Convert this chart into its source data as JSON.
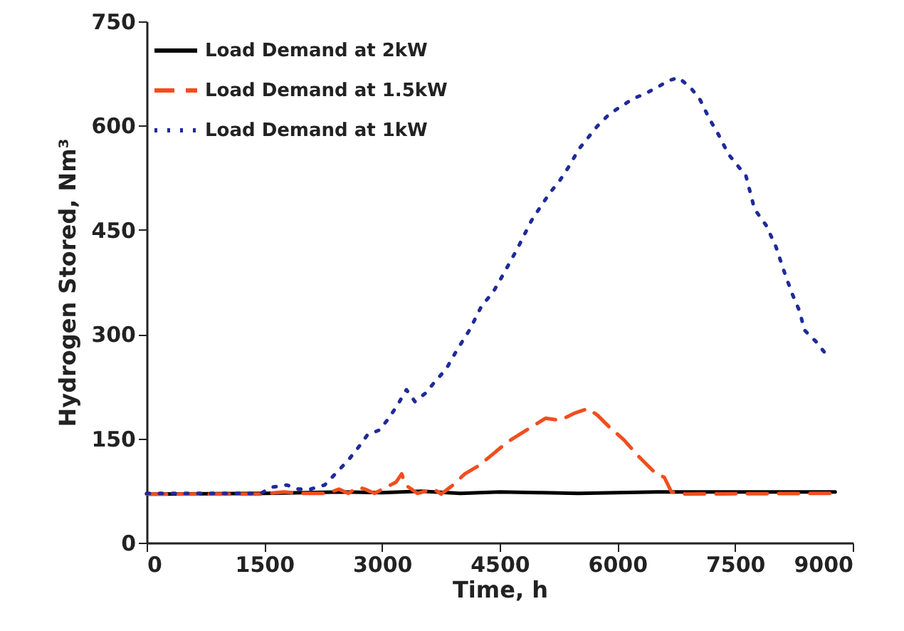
{
  "chart_data": {
    "type": "line",
    "xlabel": "Time, h",
    "ylabel": "Hydrogen Stored, Nm³",
    "xlim": [
      0,
      9000
    ],
    "xticks": [
      0,
      1500,
      3000,
      4500,
      6000,
      7500,
      9000
    ],
    "ylim": [
      0,
      750
    ],
    "yticks": [
      0,
      150,
      300,
      450,
      600,
      750
    ],
    "grid": false,
    "legend": "top left",
    "series": [
      {
        "name": "Load Demand at 2kW",
        "color": "#000000",
        "line_style": "solid",
        "x": [
          0,
          1500,
          2500,
          3000,
          3500,
          4000,
          4500,
          5000,
          5500,
          6000,
          6500,
          7000,
          7500,
          8776
        ],
        "values": [
          70,
          71,
          73,
          72,
          74,
          71,
          73,
          72,
          71,
          72,
          73,
          73,
          73,
          73
        ]
      },
      {
        "name": "Load Demand at 1.5kW",
        "color": "#f04e1e",
        "line_style": "dashed",
        "x": [
          0,
          1453,
          1755,
          1967,
          2300,
          2451,
          2572,
          2693,
          2784,
          2905,
          3057,
          3178,
          3251,
          3299,
          3451,
          3663,
          3753,
          3905,
          4056,
          4237,
          4419,
          4600,
          4842,
          5084,
          5266,
          5447,
          5629,
          5750,
          5901,
          6083,
          6264,
          6476,
          6598,
          6689,
          6870,
          8776
        ],
        "values": [
          70,
          70,
          73,
          71,
          71,
          77,
          71,
          80,
          77,
          71,
          80,
          87,
          99,
          83,
          71,
          77,
          70,
          83,
          99,
          111,
          128,
          145,
          162,
          179,
          176,
          186,
          193,
          183,
          166,
          148,
          125,
          101,
          94,
          73,
          70,
          71
        ]
      },
      {
        "name": "Load Demand at 1kW",
        "color": "#1f2a9a",
        "line_style": "dotted",
        "x": [
          0,
          1453,
          1604,
          1785,
          1937,
          2088,
          2270,
          2421,
          2572,
          2705,
          2814,
          2966,
          3087,
          3208,
          3311,
          3420,
          3553,
          3692,
          3813,
          3965,
          4116,
          4267,
          4419,
          4540,
          4721,
          4903,
          5024,
          5145,
          5266,
          5387,
          5508,
          5629,
          5750,
          5901,
          6053,
          6204,
          6355,
          6506,
          6658,
          6779,
          6930,
          7051,
          7172,
          7294,
          7415,
          7536,
          7638,
          7748,
          7899,
          8020,
          8141,
          8232,
          8323,
          8383,
          8534,
          8667
        ],
        "values": [
          71,
          71,
          80,
          83,
          77,
          77,
          83,
          101,
          119,
          138,
          155,
          162,
          179,
          200,
          220,
          203,
          215,
          234,
          249,
          279,
          306,
          340,
          361,
          385,
          422,
          463,
          484,
          504,
          521,
          542,
          566,
          583,
          600,
          617,
          628,
          639,
          646,
          655,
          665,
          669,
          655,
          638,
          610,
          586,
          559,
          542,
          528,
          480,
          456,
          426,
          385,
          357,
          333,
          306,
          289,
          270
        ]
      }
    ]
  }
}
